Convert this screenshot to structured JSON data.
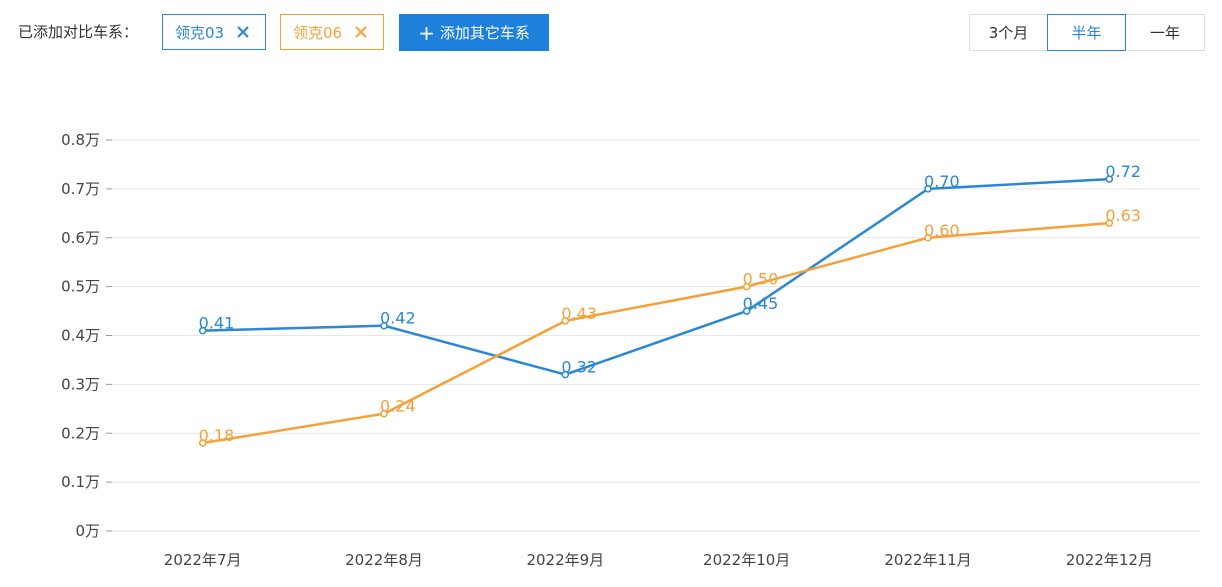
{
  "toolbar": {
    "compare_label": "已添加对比车系：",
    "tags": [
      {
        "label": "领克03",
        "color": "#2a86d6"
      },
      {
        "label": "领克06",
        "color": "#f5a13a"
      }
    ],
    "add_button_label": "添加其它车系",
    "add_button_icon": "plus-icon",
    "remove_icon": "close-icon",
    "ranges": [
      "3个月",
      "半年",
      "一年"
    ],
    "active_range": "半年"
  },
  "chart_data": {
    "type": "line",
    "categories": [
      "2022年7月",
      "2022年8月",
      "2022年9月",
      "2022年10月",
      "2022年11月",
      "2022年12月"
    ],
    "series": [
      {
        "name": "领克03",
        "color": "#2a86d6",
        "values": [
          0.41,
          0.42,
          0.32,
          0.45,
          0.7,
          0.72
        ],
        "labels": [
          "0.41",
          "0.42",
          "0.32",
          "0.45",
          "0.70",
          "0.72"
        ]
      },
      {
        "name": "领克06",
        "color": "#f5a13a",
        "values": [
          0.18,
          0.24,
          0.43,
          0.5,
          0.6,
          0.63
        ],
        "labels": [
          "0.18",
          "0.24",
          "0.43",
          "0.50",
          "0.60",
          "0.63"
        ]
      }
    ],
    "y_ticks": [
      "0万",
      "0.1万",
      "0.2万",
      "0.3万",
      "0.4万",
      "0.5万",
      "0.6万",
      "0.7万",
      "0.8万"
    ],
    "ylim": [
      0,
      0.8
    ],
    "grid": true,
    "gridline_color": "#e6e6e6",
    "legend": "none"
  }
}
